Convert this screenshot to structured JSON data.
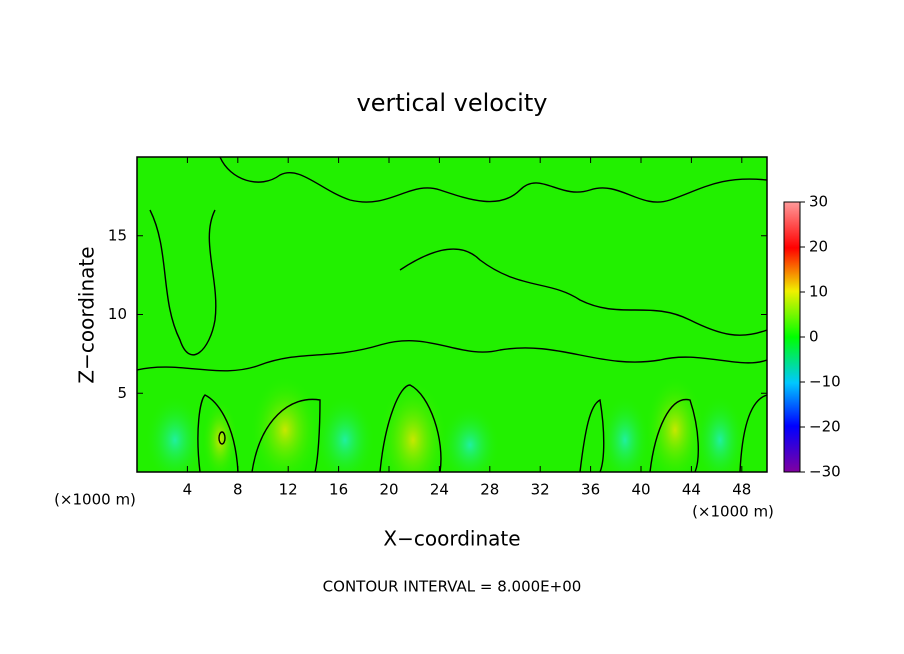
{
  "chart_data": {
    "type": "contour",
    "title": "vertical velocity",
    "x_label": "X−coordinate",
    "y_label": "Z−coordinate",
    "x_unit": "(×1000 m)",
    "y_unit": "(×1000 m)",
    "annotation": "CONTOUR INTERVAL = 8.000E+00",
    "xlim": [
      0,
      50
    ],
    "xticks": [
      4,
      8,
      12,
      16,
      20,
      24,
      28,
      32,
      36,
      40,
      44,
      48
    ],
    "ylim": [
      0,
      20
    ],
    "yticks": [
      5,
      10,
      15
    ],
    "clim": [
      -30,
      30
    ],
    "cticks": [
      {
        "value": -30,
        "label": "−30"
      },
      {
        "value": -20,
        "label": "−20"
      },
      {
        "value": -10,
        "label": "−10"
      },
      0,
      10,
      20,
      30
    ]
  }
}
